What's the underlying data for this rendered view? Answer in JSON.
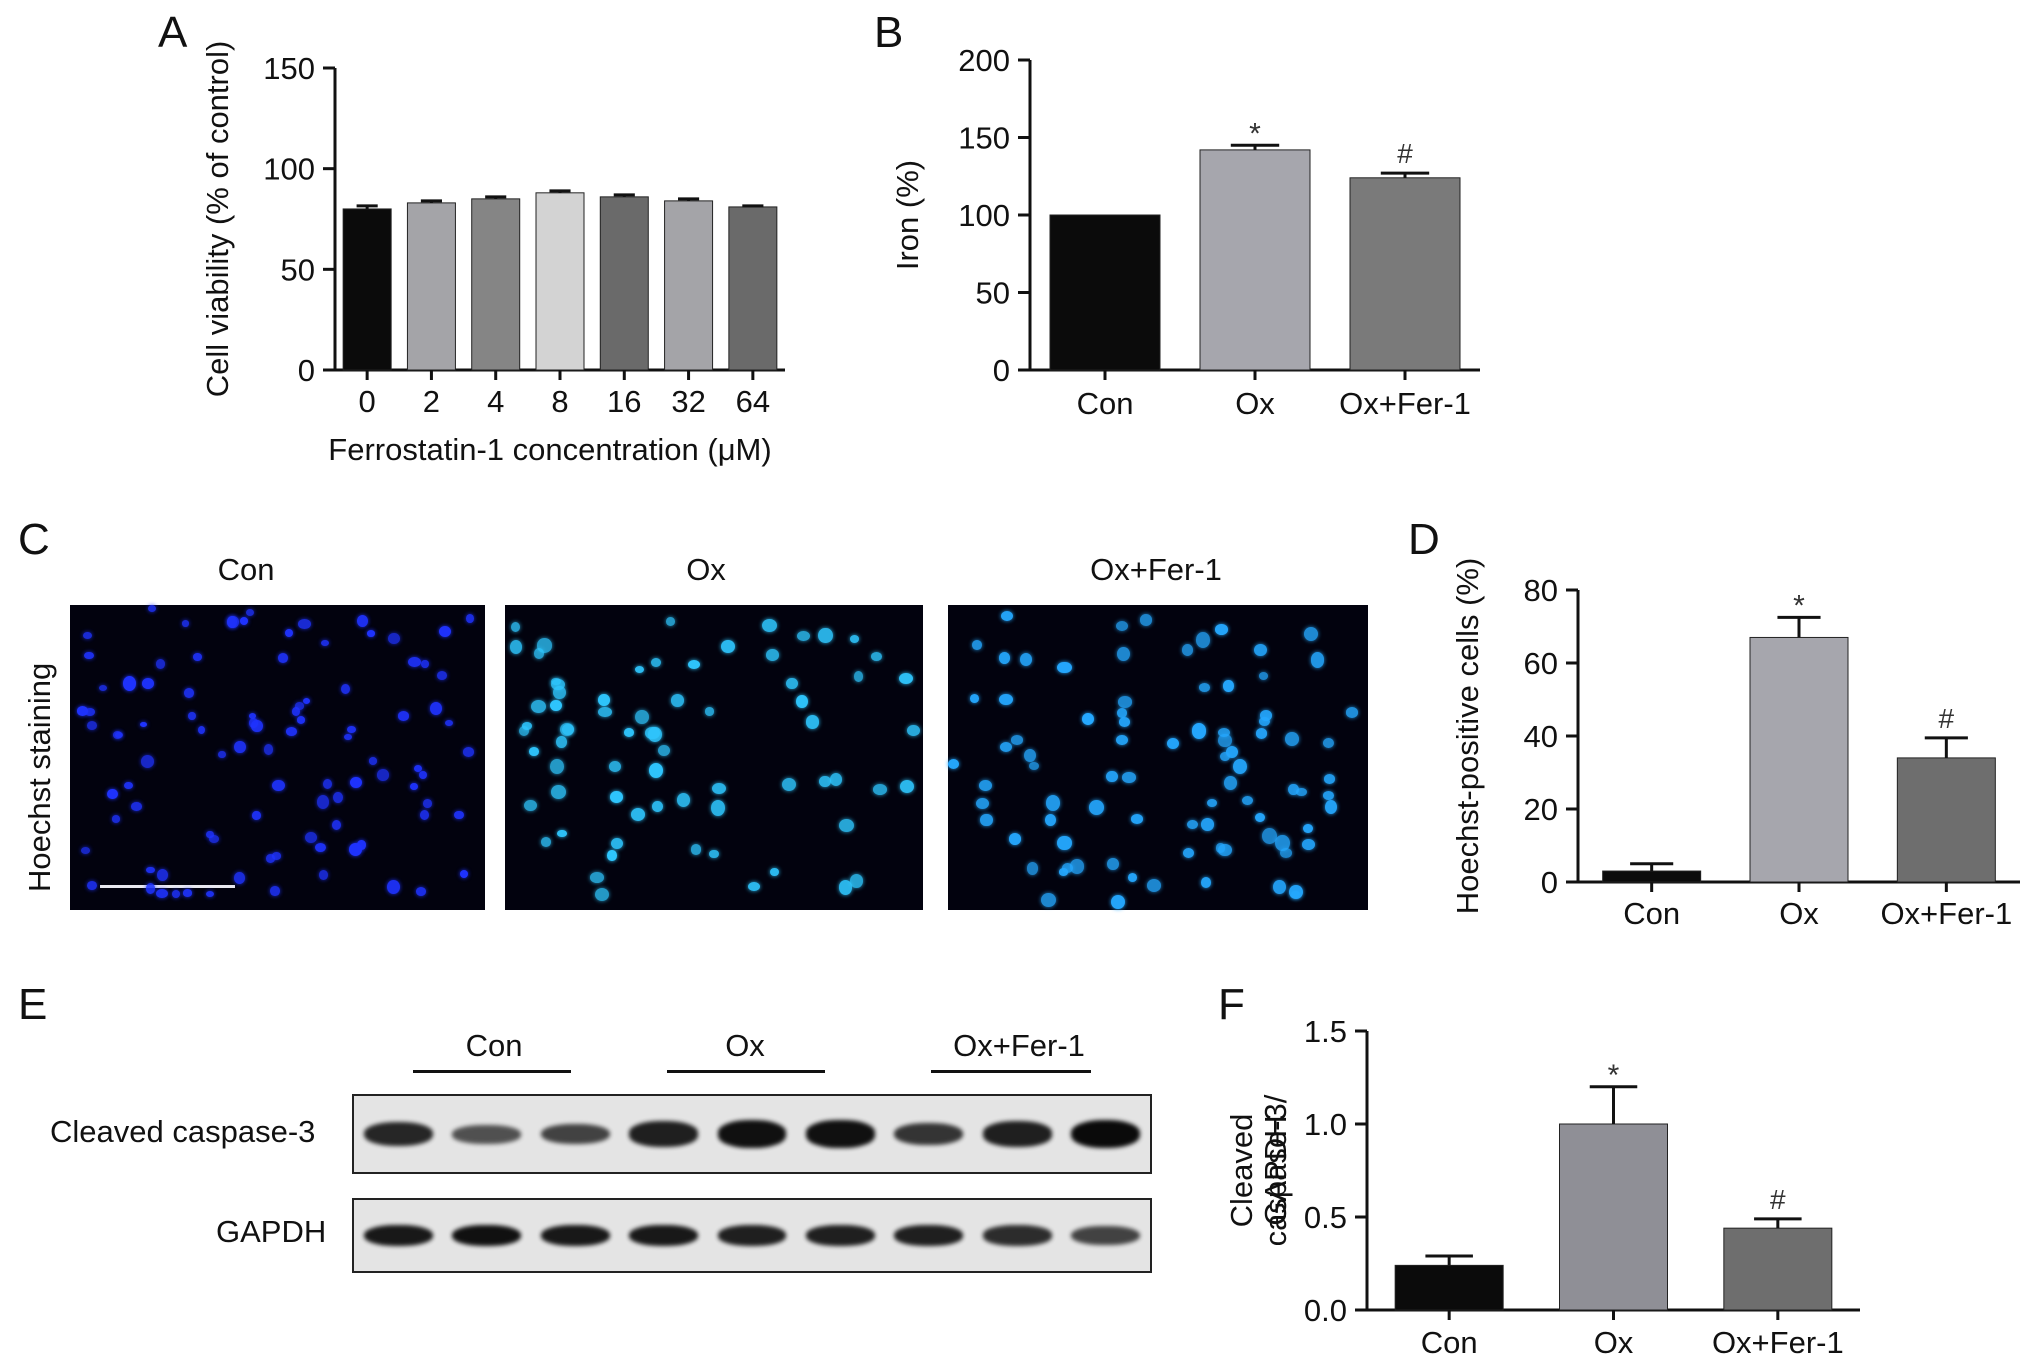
{
  "panels": [
    {
      "letter": "A",
      "chart": {
        "type": "bar",
        "ylabel": "Cell viability (% of control)",
        "xlabel": "Ferrostatin-1 concentration (μM)",
        "ylim": [
          0,
          150
        ],
        "yticks": [
          "0",
          "50",
          "100",
          "150"
        ],
        "categories": [
          "0",
          "2",
          "4",
          "8",
          "16",
          "32",
          "64"
        ],
        "values": [
          80,
          83,
          85,
          88,
          86,
          84,
          81
        ],
        "errors": [
          1.5,
          1,
          1,
          1,
          1,
          1,
          0.5
        ],
        "annotations": [
          "",
          "",
          "",
          "",
          "",
          "",
          ""
        ],
        "colors": [
          "#0b0b0b",
          "#a4a4a8",
          "#858585",
          "#d3d3d3",
          "#6a6a6a",
          "#a4a4a8",
          "#6a6a6a"
        ]
      }
    },
    {
      "letter": "B",
      "chart": {
        "type": "bar",
        "ylabel": "Iron (%)",
        "xlabel": "",
        "ylim": [
          0,
          200
        ],
        "yticks": [
          "0",
          "50",
          "100",
          "150",
          "200"
        ],
        "categories": [
          "Con",
          "Ox",
          "Ox+Fer-1"
        ],
        "values": [
          100,
          142,
          124
        ],
        "errors": [
          0,
          3,
          3
        ],
        "annotations": [
          "",
          "*",
          "#"
        ],
        "colors": [
          "#0b0b0b",
          "#a6a6ad",
          "#7a7a7a"
        ]
      }
    },
    {
      "letter": "D",
      "chart": {
        "type": "bar",
        "ylabel": "Hoechst-positive cells (%)",
        "xlabel": "",
        "ylim": [
          0,
          80
        ],
        "yticks": [
          "0",
          "20",
          "40",
          "60",
          "80"
        ],
        "categories": [
          "Con",
          "Ox",
          "Ox+Fer-1"
        ],
        "values": [
          3,
          67,
          34
        ],
        "errors": [
          2,
          5.5,
          5.5
        ],
        "annotations": [
          "",
          "*",
          "#"
        ],
        "colors": [
          "#0b0b0b",
          "#a6a6ad",
          "#6e6e6e"
        ]
      }
    },
    {
      "letter": "F",
      "chart": {
        "type": "bar",
        "ylabel": "Cleaved caspase-3/ GAPDH",
        "xlabel": "",
        "ylim": [
          0,
          1.5
        ],
        "yticks": [
          "0.0",
          "0.5",
          "1.0",
          "1.5"
        ],
        "categories": [
          "Con",
          "Ox",
          "Ox+Fer-1"
        ],
        "values": [
          0.24,
          1.0,
          0.44
        ],
        "errors": [
          0.05,
          0.2,
          0.05
        ],
        "annotations": [
          "",
          "*",
          "#"
        ],
        "colors": [
          "#0b0b0b",
          "#8f8f96",
          "#6e6e6e"
        ]
      }
    }
  ],
  "panel_c": {
    "letter": "C",
    "titles": [
      "Con",
      "Ox",
      "Ox+Fer-1"
    ],
    "row_label": "Hoechst staining",
    "nuclei_colors": [
      "#1f33ff",
      "#2fc7ff",
      "#25a8ff"
    ]
  },
  "panel_e": {
    "letter": "E",
    "groups": [
      "Con",
      "Ox",
      "Ox+Fer-1"
    ],
    "rows": [
      "Cleaved caspase-3",
      "GAPDH"
    ],
    "caspase_intensity": [
      0.8,
      0.5,
      0.6,
      0.85,
      0.95,
      0.95,
      0.7,
      0.85,
      1.0
    ],
    "gapdh_intensity": [
      0.9,
      0.95,
      0.9,
      0.9,
      0.85,
      0.85,
      0.85,
      0.75,
      0.6
    ]
  }
}
